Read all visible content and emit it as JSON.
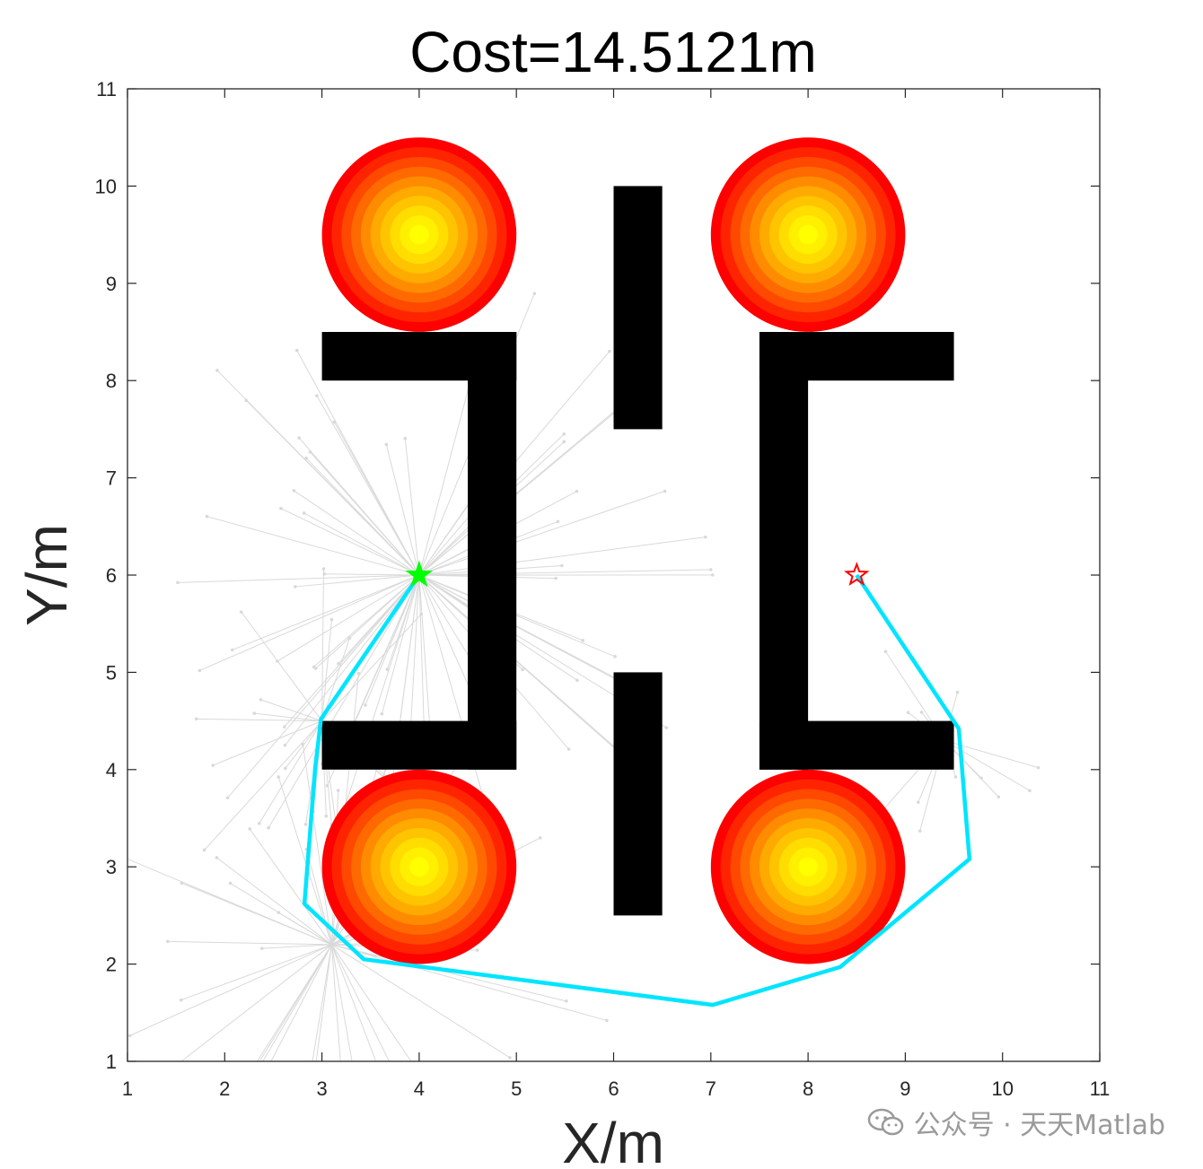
{
  "chart_data": {
    "type": "scatter",
    "title": "Cost=14.5121m",
    "xlabel": "X/m",
    "ylabel": "Y/m",
    "xlim": [
      1,
      11
    ],
    "ylim": [
      1,
      11
    ],
    "xticks": [
      1,
      2,
      3,
      4,
      5,
      6,
      7,
      8,
      9,
      10,
      11
    ],
    "yticks": [
      1,
      2,
      3,
      4,
      5,
      6,
      7,
      8,
      9,
      10,
      11
    ],
    "grid": false,
    "obstacles_rect": [
      {
        "x": [
          3,
          5
        ],
        "y": [
          8,
          8.5
        ]
      },
      {
        "x": [
          4.5,
          5
        ],
        "y": [
          4,
          8.5
        ]
      },
      {
        "x": [
          3,
          5
        ],
        "y": [
          4,
          4.5
        ]
      },
      {
        "x": [
          6,
          6.5
        ],
        "y": [
          7.5,
          10
        ]
      },
      {
        "x": [
          6,
          6.5
        ],
        "y": [
          2.5,
          5
        ]
      },
      {
        "x": [
          7.5,
          9.5
        ],
        "y": [
          8,
          8.5
        ]
      },
      {
        "x": [
          7.5,
          8
        ],
        "y": [
          4,
          8.5
        ]
      },
      {
        "x": [
          7.5,
          9.5
        ],
        "y": [
          4,
          4.5
        ]
      }
    ],
    "threat_circles": [
      {
        "center": [
          4,
          9.5
        ],
        "radius": 1
      },
      {
        "center": [
          8,
          9.5
        ],
        "radius": 1
      },
      {
        "center": [
          4,
          3
        ],
        "radius": 1
      },
      {
        "center": [
          8,
          3
        ],
        "radius": 1
      }
    ],
    "start": {
      "x": 4,
      "y": 6,
      "marker": "star",
      "color": "#00ff00"
    },
    "goal": {
      "x": 8.5,
      "y": 6,
      "marker": "star",
      "color": "#ff0000"
    },
    "path": {
      "color": "#00e5ff",
      "x": [
        4,
        2.99,
        2.93,
        2.82,
        3.43,
        7.02,
        8.33,
        9.66,
        9.55,
        8.5
      ],
      "y": [
        6,
        4.52,
        4.01,
        2.62,
        2.05,
        1.58,
        1.97,
        3.08,
        4.42,
        6
      ]
    },
    "explored_tree_color": "#d9d9d9",
    "watermark": "公众号 · 天天Matlab"
  }
}
